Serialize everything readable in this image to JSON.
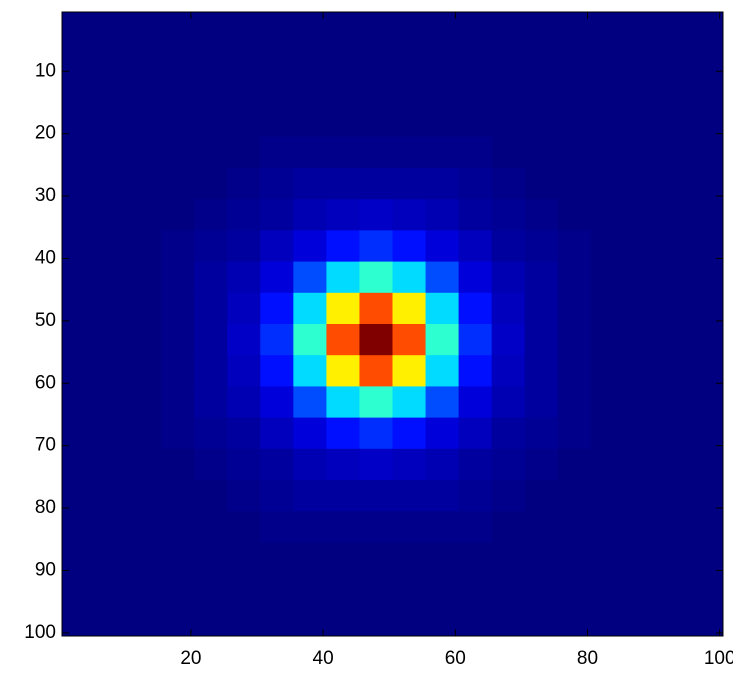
{
  "chart_data": {
    "type": "heatmap",
    "colormap": "jet",
    "x": [
      3,
      8,
      13,
      18,
      23,
      28,
      33,
      38,
      43,
      48,
      53,
      58,
      63,
      68,
      73,
      78,
      83,
      88,
      93,
      98
    ],
    "y": [
      3,
      8,
      13,
      18,
      23,
      28,
      33,
      38,
      43,
      48,
      53,
      58,
      63,
      68,
      73,
      78,
      83,
      88,
      93,
      98
    ],
    "z": [
      [
        0,
        0,
        0,
        0,
        0,
        0,
        0,
        0,
        0,
        0,
        0,
        0,
        0,
        0,
        0,
        0,
        0,
        0,
        0,
        0
      ],
      [
        0,
        0,
        0,
        0,
        0,
        0,
        0,
        0,
        0,
        0,
        0,
        0,
        0,
        0,
        0,
        0,
        0,
        0,
        0,
        0
      ],
      [
        0,
        0,
        0,
        0,
        0,
        0,
        0,
        0,
        0,
        0,
        0,
        0,
        0,
        0,
        0,
        0,
        0,
        0,
        0,
        0
      ],
      [
        0,
        0,
        0,
        0,
        0,
        0,
        0,
        0,
        0,
        0,
        0,
        0,
        0,
        0,
        0,
        0,
        0,
        0,
        0,
        0
      ],
      [
        0,
        0,
        0,
        0,
        0,
        0,
        0.01,
        0.01,
        0.01,
        0.01,
        0.01,
        0.01,
        0.01,
        0,
        0,
        0,
        0,
        0,
        0,
        0
      ],
      [
        0,
        0,
        0,
        0,
        0,
        0.01,
        0.02,
        0.03,
        0.03,
        0.03,
        0.03,
        0.03,
        0.02,
        0.01,
        0,
        0,
        0,
        0,
        0,
        0
      ],
      [
        0,
        0,
        0,
        0,
        0.01,
        0.02,
        0.03,
        0.05,
        0.06,
        0.07,
        0.06,
        0.05,
        0.03,
        0.02,
        0.01,
        0,
        0,
        0,
        0,
        0
      ],
      [
        0,
        0,
        0,
        0.01,
        0.02,
        0.03,
        0.06,
        0.09,
        0.14,
        0.17,
        0.14,
        0.09,
        0.06,
        0.03,
        0.02,
        0.01,
        0,
        0,
        0,
        0
      ],
      [
        0,
        0,
        0,
        0.01,
        0.03,
        0.05,
        0.09,
        0.2,
        0.34,
        0.42,
        0.34,
        0.2,
        0.09,
        0.05,
        0.03,
        0.01,
        0,
        0,
        0,
        0
      ],
      [
        0,
        0,
        0,
        0.01,
        0.03,
        0.06,
        0.14,
        0.34,
        0.64,
        0.8,
        0.64,
        0.34,
        0.14,
        0.06,
        0.03,
        0.01,
        0,
        0,
        0,
        0
      ],
      [
        0,
        0,
        0,
        0.01,
        0.03,
        0.07,
        0.17,
        0.42,
        0.8,
        1,
        0.8,
        0.42,
        0.17,
        0.07,
        0.03,
        0.01,
        0,
        0,
        0,
        0
      ],
      [
        0,
        0,
        0,
        0.01,
        0.03,
        0.06,
        0.14,
        0.34,
        0.64,
        0.8,
        0.64,
        0.34,
        0.14,
        0.06,
        0.03,
        0.01,
        0,
        0,
        0,
        0
      ],
      [
        0,
        0,
        0,
        0.01,
        0.03,
        0.05,
        0.09,
        0.2,
        0.34,
        0.42,
        0.34,
        0.2,
        0.09,
        0.05,
        0.03,
        0.01,
        0,
        0,
        0,
        0
      ],
      [
        0,
        0,
        0,
        0.01,
        0.02,
        0.03,
        0.06,
        0.09,
        0.14,
        0.17,
        0.14,
        0.09,
        0.06,
        0.03,
        0.02,
        0.01,
        0,
        0,
        0,
        0
      ],
      [
        0,
        0,
        0,
        0,
        0.01,
        0.02,
        0.03,
        0.05,
        0.06,
        0.07,
        0.06,
        0.05,
        0.03,
        0.02,
        0.01,
        0,
        0,
        0,
        0,
        0
      ],
      [
        0,
        0,
        0,
        0,
        0,
        0.01,
        0.02,
        0.03,
        0.03,
        0.03,
        0.03,
        0.03,
        0.02,
        0.01,
        0,
        0,
        0,
        0,
        0,
        0
      ],
      [
        0,
        0,
        0,
        0,
        0,
        0,
        0.01,
        0.01,
        0.01,
        0.01,
        0.01,
        0.01,
        0.01,
        0,
        0,
        0,
        0,
        0,
        0,
        0
      ],
      [
        0,
        0,
        0,
        0,
        0,
        0,
        0,
        0,
        0,
        0,
        0,
        0,
        0,
        0,
        0,
        0,
        0,
        0,
        0,
        0
      ],
      [
        0,
        0,
        0,
        0,
        0,
        0,
        0,
        0,
        0,
        0,
        0,
        0,
        0,
        0,
        0,
        0,
        0,
        0,
        0,
        0
      ],
      [
        0,
        0,
        0,
        0,
        0,
        0,
        0,
        0,
        0,
        0,
        0,
        0,
        0,
        0,
        0,
        0,
        0,
        0,
        0,
        0
      ]
    ],
    "zlim": [
      0,
      1
    ],
    "xlim": [
      0.5,
      100.5
    ],
    "ylim": [
      0.5,
      100.5
    ],
    "y_reversed": true,
    "xticks": [
      20,
      40,
      60,
      80,
      100
    ],
    "yticks": [
      10,
      20,
      30,
      40,
      50,
      60,
      70,
      80,
      90,
      100
    ]
  }
}
